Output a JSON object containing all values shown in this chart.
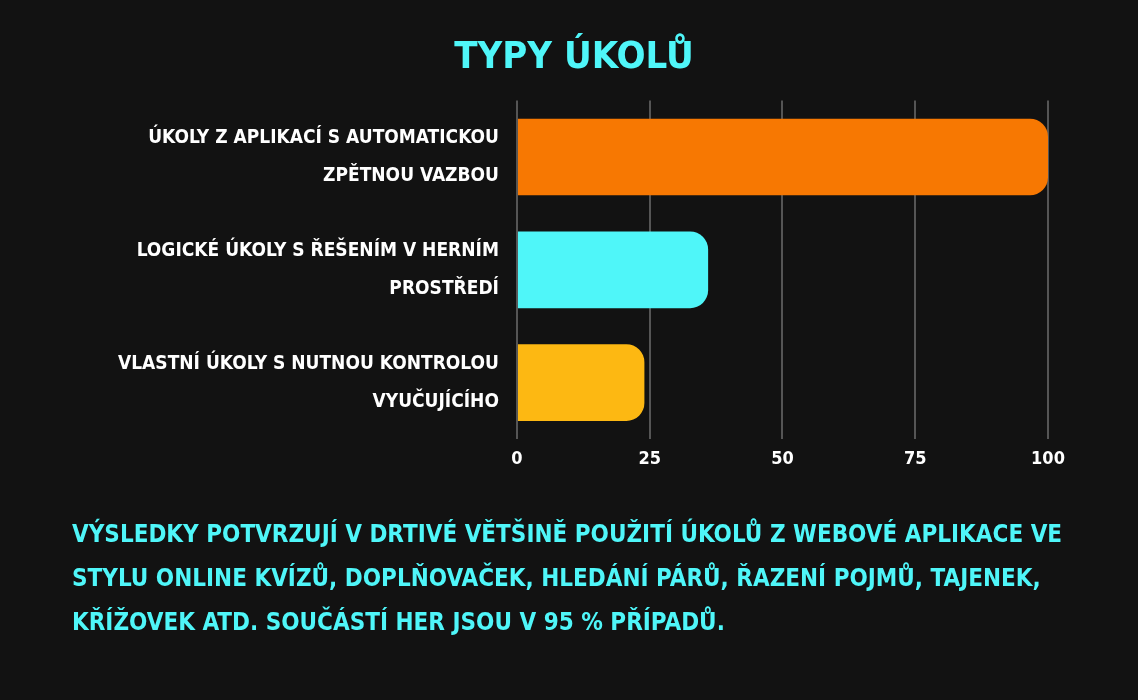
{
  "chart_data": {
    "type": "bar",
    "orientation": "horizontal",
    "title": "TYPY ÚKOLŮ",
    "categories": [
      "ÚKOLY Z APLIKACÍ S AUTOMATICKOU ZPĚTNOU VAZBOU",
      "LOGICKÉ ÚKOLY S ŘEŠENÍM V HERNÍM PROSTŘEDÍ",
      "VLASTNÍ ÚKOLY S NUTNOU KONTROLOU VYUČUJÍCÍHO"
    ],
    "values": [
      100,
      36,
      24
    ],
    "colors": [
      "#f77802",
      "#4ff6f9",
      "#fdb812"
    ],
    "xlim": [
      0,
      100
    ],
    "xticks": [
      0,
      25,
      50,
      75,
      100
    ],
    "grid": "x",
    "legend": false,
    "annotations": [
      "VÝSLEDKY POTVRZUJÍ V DRTIVÉ VĚTŠINĚ POUŽITÍ ÚKOLŮ Z WEBOVÉ APLIKACE VE STYLU ONLINE KVÍZŮ, DOPLŇOVAČEK, HLEDÁNÍ PÁRŮ, ŘAZENÍ POJMŮ, TAJENEK, KŘÍŽOVEK ATD. SOUČÁSTÍ HER JSOU V 95 % PŘÍPADŮ."
    ]
  }
}
